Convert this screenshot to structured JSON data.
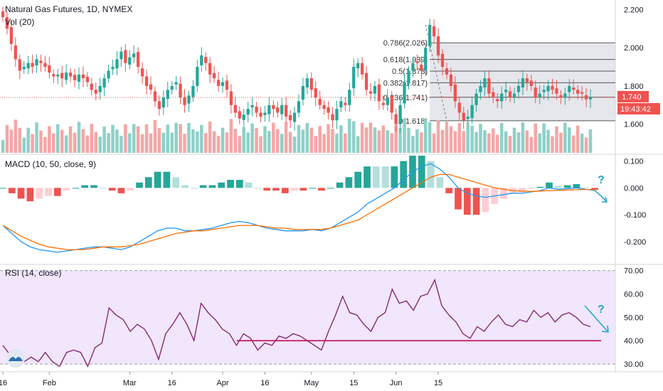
{
  "chart_data": [
    {
      "type": "candlestick",
      "panel": "price",
      "title": "Natural Gas Futures, 1D, NYMEX",
      "subtitle": "Vol (20)",
      "y_ticks": [
        "2.200",
        "2.000",
        "1.800",
        "1.600"
      ],
      "ylim": [
        1.45,
        2.25
      ],
      "last_price": "1.740",
      "countdown": "19:43:42",
      "colors": {
        "up": "#26a69a",
        "down": "#ef5350",
        "vol_up": "#8fd0c8",
        "vol_down": "#f5a6a6",
        "fib_fill": "#d1d4dc"
      },
      "fibonacci": [
        {
          "label": "0.786(2.026)",
          "value": 2.026
        },
        {
          "label": "0.618(1.939)",
          "value": 1.939
        },
        {
          "label": "0.5(1.878)",
          "value": 1.878
        },
        {
          "label": "0.382(1.817)",
          "value": 1.817
        },
        {
          "label": "0.236(1.741)",
          "value": 1.741
        },
        {
          "label": "0(1.618)",
          "value": 1.618
        }
      ],
      "closes": [
        2.16,
        2.1,
        2.02,
        1.94,
        1.88,
        1.9,
        1.92,
        1.9,
        1.94,
        1.92,
        1.9,
        1.87,
        1.85,
        1.86,
        1.84,
        1.87,
        1.85,
        1.83,
        1.86,
        1.84,
        1.82,
        1.78,
        1.76,
        1.8,
        1.84,
        1.88,
        1.9,
        1.94,
        1.98,
        1.92,
        1.95,
        1.97,
        1.9,
        1.85,
        1.8,
        1.78,
        1.72,
        1.68,
        1.74,
        1.78,
        1.8,
        1.82,
        1.74,
        1.7,
        1.75,
        1.8,
        1.9,
        1.96,
        1.92,
        1.86,
        1.84,
        1.8,
        1.82,
        1.78,
        1.7,
        1.66,
        1.63,
        1.65,
        1.68,
        1.7,
        1.66,
        1.64,
        1.66,
        1.7,
        1.68,
        1.66,
        1.7,
        1.64,
        1.62,
        1.66,
        1.72,
        1.8,
        1.84,
        1.78,
        1.74,
        1.7,
        1.68,
        1.66,
        1.62,
        1.68,
        1.72,
        1.7,
        1.78,
        1.9,
        1.92,
        1.86,
        1.78,
        1.76,
        1.8,
        1.72,
        1.7,
        1.74,
        1.66,
        1.6,
        1.7,
        1.82,
        1.88,
        1.92,
        1.92,
        1.88,
        2.0,
        2.12,
        2.06,
        1.96,
        1.9,
        1.86,
        1.8,
        1.72,
        1.66,
        1.62,
        1.64,
        1.7,
        1.76,
        1.8,
        1.84,
        1.76,
        1.74,
        1.72,
        1.76,
        1.78,
        1.74,
        1.76,
        1.8,
        1.84,
        1.82,
        1.8,
        1.74,
        1.76,
        1.78,
        1.8,
        1.78,
        1.76,
        1.74,
        1.76,
        1.8,
        1.78,
        1.76,
        1.76,
        1.73,
        1.74
      ],
      "x_ticks": [
        {
          "label": "16",
          "index": 0
        },
        {
          "label": "Feb",
          "index": 11
        },
        {
          "label": "Mar",
          "index": 30
        },
        {
          "label": "16",
          "index": 40
        },
        {
          "label": "Apr",
          "index": 52
        },
        {
          "label": "16",
          "index": 62
        },
        {
          "label": "May",
          "index": 73
        },
        {
          "label": "15",
          "index": 83
        },
        {
          "label": "Jun",
          "index": 93
        },
        {
          "label": "15",
          "index": 103
        }
      ]
    },
    {
      "type": "line",
      "panel": "macd",
      "title": "MACD (10, 50, close, 9)",
      "y_ticks": [
        "0.100",
        "0.000",
        "-0.100",
        "-0.200"
      ],
      "ylim": [
        -0.28,
        0.12
      ],
      "series": [
        {
          "name": "MACD",
          "color": "#2196f3",
          "values": [
            -0.14,
            -0.17,
            -0.2,
            -0.22,
            -0.23,
            -0.235,
            -0.24,
            -0.235,
            -0.23,
            -0.225,
            -0.22,
            -0.22,
            -0.225,
            -0.23,
            -0.22,
            -0.2,
            -0.18,
            -0.16,
            -0.15,
            -0.15,
            -0.16,
            -0.16,
            -0.155,
            -0.15,
            -0.14,
            -0.13,
            -0.125,
            -0.13,
            -0.14,
            -0.15,
            -0.155,
            -0.16,
            -0.16,
            -0.16,
            -0.155,
            -0.16,
            -0.15,
            -0.13,
            -0.11,
            -0.09,
            -0.06,
            -0.04,
            -0.02,
            0.0,
            0.03,
            0.06,
            0.08,
            0.09,
            0.07,
            0.04,
            0.0,
            -0.02,
            -0.03,
            -0.035,
            -0.03,
            -0.025,
            -0.02,
            -0.02,
            -0.015,
            -0.01,
            0.0,
            -0.005,
            -0.003,
            0.0,
            -0.005,
            -0.01
          ]
        },
        {
          "name": "Signal",
          "color": "#ff6d00",
          "values": [
            -0.14,
            -0.16,
            -0.18,
            -0.195,
            -0.21,
            -0.22,
            -0.225,
            -0.23,
            -0.23,
            -0.23,
            -0.225,
            -0.22,
            -0.22,
            -0.22,
            -0.215,
            -0.21,
            -0.2,
            -0.19,
            -0.18,
            -0.17,
            -0.165,
            -0.16,
            -0.16,
            -0.155,
            -0.15,
            -0.145,
            -0.14,
            -0.14,
            -0.14,
            -0.145,
            -0.15,
            -0.15,
            -0.155,
            -0.155,
            -0.155,
            -0.155,
            -0.15,
            -0.14,
            -0.13,
            -0.12,
            -0.1,
            -0.08,
            -0.06,
            -0.04,
            -0.02,
            0.0,
            0.02,
            0.04,
            0.05,
            0.05,
            0.04,
            0.03,
            0.02,
            0.01,
            0.0,
            -0.005,
            -0.01,
            -0.012,
            -0.013,
            -0.012,
            -0.01,
            -0.009,
            -0.008,
            -0.007,
            -0.006,
            -0.006
          ]
        }
      ],
      "hist_colors": {
        "pos_strong": "#26a69a",
        "pos_weak": "#b2dfdb",
        "neg_strong": "#ef5350",
        "neg_weak": "#ffcdd2"
      },
      "annotation": "?"
    },
    {
      "type": "line",
      "panel": "rsi",
      "title": "RSI (14, close)",
      "y_ticks": [
        "70.00",
        "60.00",
        "50.00",
        "40.00",
        "30.00"
      ],
      "ylim": [
        27,
        72
      ],
      "band": [
        30,
        70
      ],
      "support_value": 40,
      "series": [
        {
          "name": "RSI",
          "color": "#7e1e6b",
          "values": [
            38,
            34,
            30,
            31,
            33,
            31,
            35,
            31,
            29,
            35,
            36,
            35,
            29,
            37,
            39,
            54,
            51,
            49,
            44,
            47,
            45,
            40,
            32,
            43,
            47,
            52,
            47,
            40,
            56,
            52,
            49,
            45,
            43,
            38,
            43,
            41,
            36,
            39,
            38,
            42,
            41,
            43,
            42,
            40,
            38,
            36,
            44,
            51,
            59,
            52,
            51,
            47,
            44,
            50,
            52,
            62,
            56,
            57,
            53,
            59,
            60,
            66,
            55,
            51,
            48,
            43,
            41,
            46,
            44,
            48,
            51,
            47,
            46,
            49,
            48,
            53,
            50,
            52,
            48,
            51,
            52,
            50,
            47,
            46
          ]
        }
      ],
      "annotation": "?"
    }
  ]
}
